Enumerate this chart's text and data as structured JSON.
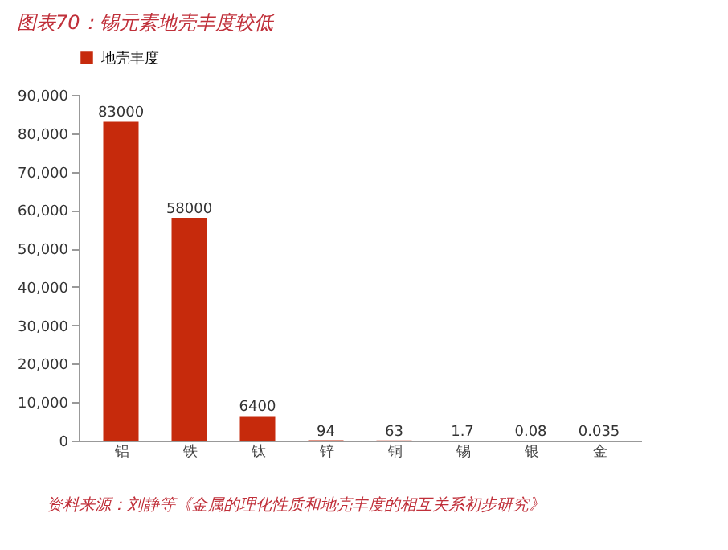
{
  "chart_data": {
    "type": "bar",
    "title": "图表70：锡元素地壳丰度较低",
    "categories": [
      "铝",
      "铁",
      "钛",
      "锌",
      "铜",
      "锡",
      "银",
      "金"
    ],
    "series": [
      {
        "name": "地壳丰度",
        "color": "#c62a0c",
        "values": [
          83000,
          58000,
          6400,
          94,
          63,
          1.7,
          0.08,
          0.035
        ]
      }
    ],
    "ylim": [
      0,
      90000
    ],
    "yticks": [
      0,
      {
        "value": 10000,
        "label": "10,000"
      },
      {
        "value": 20000,
        "label": "20,000"
      },
      {
        "value": 30000,
        "label": "30,000"
      },
      {
        "value": 40000,
        "label": "40,000"
      },
      {
        "value": 50000,
        "label": "50,000"
      },
      {
        "value": 60000,
        "label": "60,000"
      },
      {
        "value": 70000,
        "label": "70,000"
      },
      {
        "value": 80000,
        "label": "80,000"
      },
      {
        "value": 90000,
        "label": "90,000"
      }
    ],
    "data_labels": true,
    "grid": false,
    "legend": "top",
    "annotations": [
      "资料来源：刘静等《金属的理化性质和地壳丰度的相互关系初步研究》"
    ]
  }
}
